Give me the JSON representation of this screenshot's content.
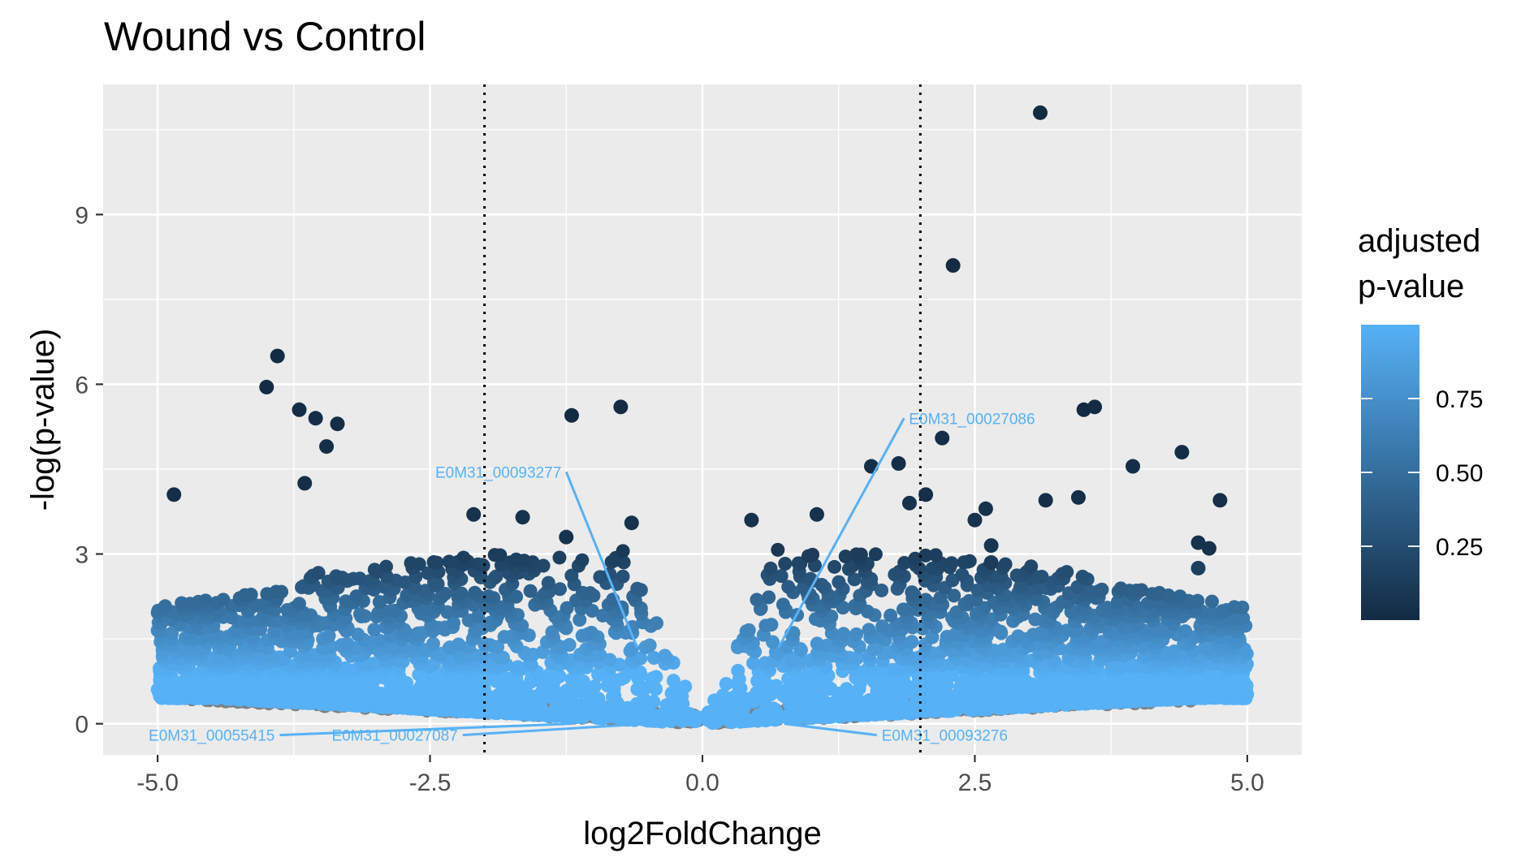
{
  "chart_data": {
    "type": "scatter",
    "title": "Wound vs Control",
    "xlabel": "log2FoldChange",
    "ylabel": "-log(p-value)",
    "xlim": [
      -5.5,
      5.5
    ],
    "ylim": [
      -0.55,
      11.3
    ],
    "x_ticks": [
      -5.0,
      -2.5,
      0.0,
      2.5,
      5.0
    ],
    "x_tick_labels": [
      "-5.0",
      "-2.5",
      "0.0",
      "2.5",
      "5.0"
    ],
    "y_ticks": [
      0,
      3,
      6,
      9
    ],
    "y_tick_labels": [
      "0",
      "3",
      "6",
      "9"
    ],
    "grid": true,
    "background": "#ebebeb",
    "threshold_lines_x": [
      -2,
      2
    ],
    "color_scale": {
      "title_lines": [
        "adjusted",
        "p-value"
      ],
      "low_color": "#132b43",
      "high_color": "#56b1f7",
      "na_color": "#808080",
      "breaks": [
        0.25,
        0.5,
        0.75
      ],
      "break_labels": [
        "0.25",
        "0.50",
        "0.75"
      ],
      "legend_position": "right"
    },
    "highlighted_points": [
      {
        "x": 3.1,
        "y": 10.8,
        "padj": 0.0
      },
      {
        "x": 2.3,
        "y": 8.1,
        "padj": 0.0
      },
      {
        "x": -3.9,
        "y": 6.5,
        "padj": 0.0
      },
      {
        "x": -4.0,
        "y": 5.95,
        "padj": 0.0
      },
      {
        "x": -0.75,
        "y": 5.6,
        "padj": 0.0
      },
      {
        "x": -1.2,
        "y": 5.45,
        "padj": 0.0
      },
      {
        "x": 3.6,
        "y": 5.6,
        "padj": 0.0
      },
      {
        "x": 3.5,
        "y": 5.55,
        "padj": 0.0
      },
      {
        "x": -4.85,
        "y": 4.05,
        "padj": 0.02
      },
      {
        "x": -3.7,
        "y": 5.55,
        "padj": 0.02
      },
      {
        "x": -3.55,
        "y": 5.4,
        "padj": 0.02
      },
      {
        "x": -3.35,
        "y": 5.3,
        "padj": 0.02
      },
      {
        "x": -3.45,
        "y": 4.9,
        "padj": 0.03
      },
      {
        "x": -3.65,
        "y": 4.25,
        "padj": 0.03
      },
      {
        "x": 2.2,
        "y": 5.05,
        "padj": 0.02
      },
      {
        "x": 4.4,
        "y": 4.8,
        "padj": 0.02
      },
      {
        "x": 3.95,
        "y": 4.55,
        "padj": 0.02
      },
      {
        "x": 1.8,
        "y": 4.6,
        "padj": 0.03
      },
      {
        "x": 1.55,
        "y": 4.55,
        "padj": 0.03
      },
      {
        "x": 2.05,
        "y": 4.05,
        "padj": 0.03
      },
      {
        "x": 4.75,
        "y": 3.95,
        "padj": 0.03
      },
      {
        "x": 3.15,
        "y": 3.95,
        "padj": 0.03
      },
      {
        "x": 3.45,
        "y": 4.0,
        "padj": 0.03
      },
      {
        "x": 4.55,
        "y": 3.2,
        "padj": 0.05
      },
      {
        "x": 4.65,
        "y": 3.1,
        "padj": 0.05
      },
      {
        "x": -2.1,
        "y": 3.7,
        "padj": 0.05
      },
      {
        "x": -1.65,
        "y": 3.65,
        "padj": 0.05
      },
      {
        "x": -0.65,
        "y": 3.55,
        "padj": 0.05
      },
      {
        "x": -1.25,
        "y": 3.3,
        "padj": 0.06
      },
      {
        "x": 0.45,
        "y": 3.6,
        "padj": 0.05
      },
      {
        "x": 1.05,
        "y": 3.7,
        "padj": 0.05
      },
      {
        "x": 1.9,
        "y": 3.9,
        "padj": 0.05
      },
      {
        "x": 2.6,
        "y": 3.8,
        "padj": 0.05
      },
      {
        "x": 2.5,
        "y": 3.6,
        "padj": 0.05
      },
      {
        "x": 2.65,
        "y": 3.15,
        "padj": 0.08
      },
      {
        "x": 2.65,
        "y": 2.85,
        "padj": 0.12
      },
      {
        "x": 4.55,
        "y": 2.75,
        "padj": 0.15
      }
    ],
    "cloud": {
      "point_count_estimate": 6000,
      "x_extent": [
        -5.0,
        5.0
      ],
      "max_y_near_threshold": 3.0,
      "na_points_color": "#808080"
    },
    "annotations": [
      {
        "text": "E0M31_00027086",
        "label_x": 1.85,
        "label_y": 5.4,
        "point_x": 0.7,
        "point_y": 1.35
      },
      {
        "text": "E0M31_00093277",
        "label_x": -1.25,
        "label_y": 4.45,
        "point_x": -0.6,
        "point_y": 1.35
      },
      {
        "text": "E0M31_00055415",
        "label_x": -3.88,
        "label_y": -0.2,
        "point_x": -1.2,
        "point_y": 0.0
      },
      {
        "text": "E0M31_00027087",
        "label_x": -2.2,
        "label_y": -0.2,
        "point_x": -0.5,
        "point_y": 0.0
      },
      {
        "text": "E0M31_00093276",
        "label_x": 1.6,
        "label_y": -0.2,
        "point_x": 0.75,
        "point_y": 0.0
      }
    ]
  }
}
